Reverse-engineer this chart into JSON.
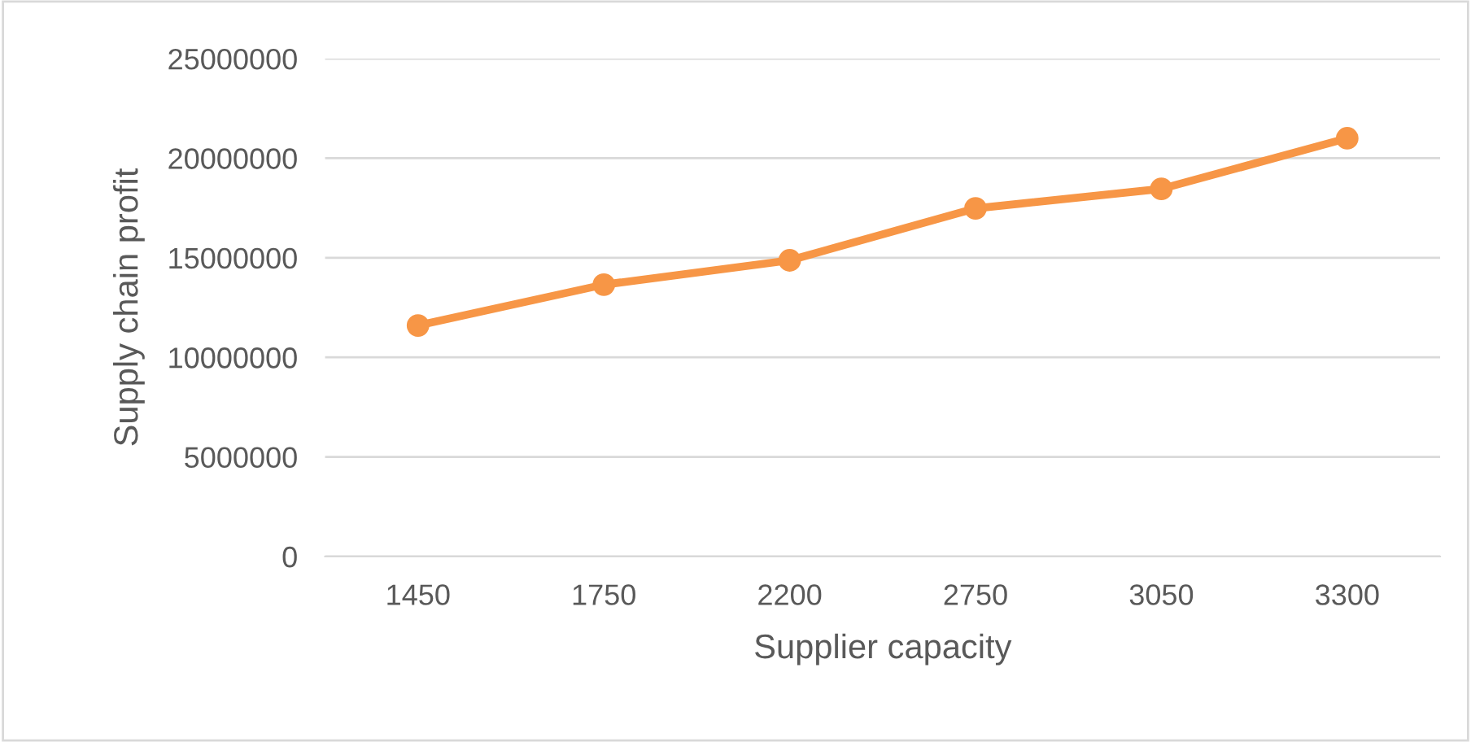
{
  "chart_data": {
    "type": "line",
    "xlabel": "Supplier capacity",
    "ylabel": "Supply chain profit",
    "categories": [
      "1450",
      "1750",
      "2200",
      "2750",
      "3050",
      "3300"
    ],
    "series": [
      {
        "color": "#f79646",
        "values": [
          11600000,
          13650000,
          14870000,
          17480000,
          18460000,
          21000000
        ]
      }
    ],
    "ylim": [
      0,
      25000000
    ],
    "yticks": [
      0,
      5000000,
      10000000,
      15000000,
      20000000,
      25000000
    ],
    "grid": "y",
    "marker": "circle",
    "line_style": "solid",
    "legend": false
  }
}
